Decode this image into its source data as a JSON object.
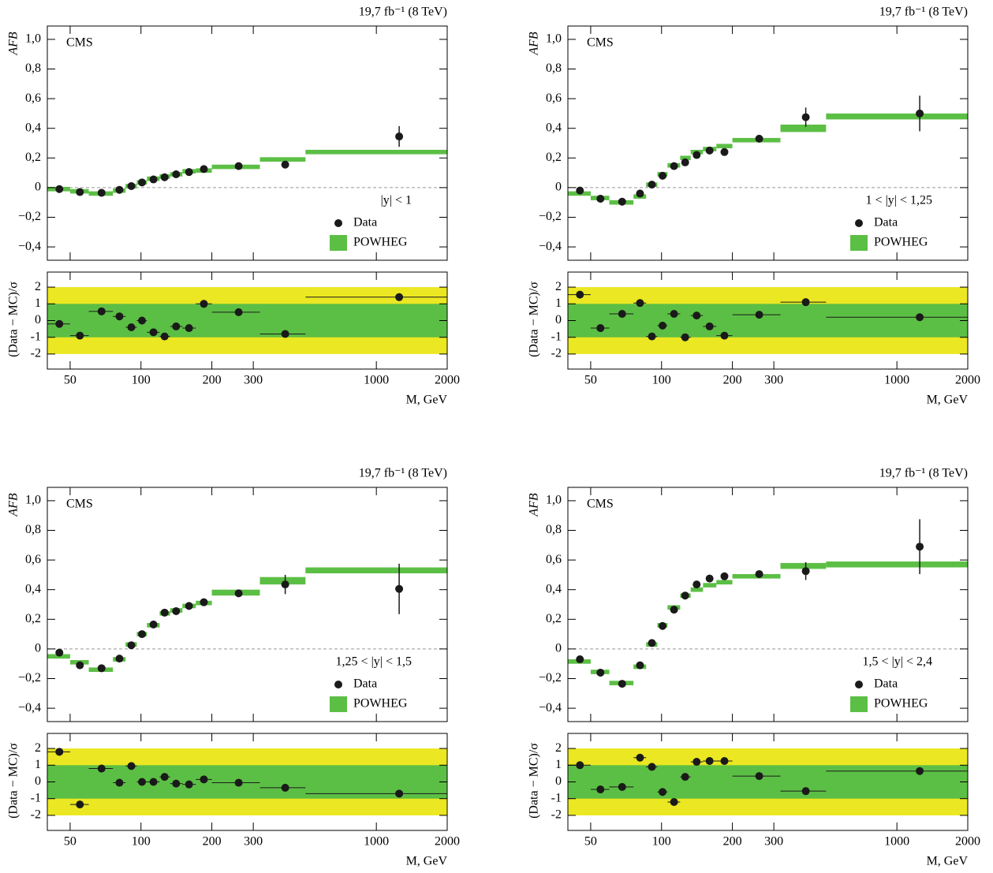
{
  "chart_data": [
    {
      "type": "errorbar",
      "title": "19,7 fb⁻¹ (8 TeV)",
      "label": "CMS",
      "annotation": "|y| < 1",
      "ylabel": "AFB",
      "xlog": true,
      "xlim": [
        40,
        2000
      ],
      "xticks": [
        50,
        100,
        200,
        300,
        1000,
        2000
      ],
      "ylim": [
        -0.49,
        1.09
      ],
      "yticks": [
        {
          "value": -0.4,
          "label": "−0,4"
        },
        {
          "value": -0.2,
          "label": "−0,2"
        },
        0,
        {
          "value": 0.2,
          "label": "0,2"
        },
        {
          "value": 0.4,
          "label": "0,4"
        },
        {
          "value": 0.6,
          "label": "0,6"
        },
        {
          "value": 0.8,
          "label": "0,8"
        },
        {
          "value": 1.0,
          "label": "1,0"
        }
      ],
      "series": [
        {
          "name": "Data",
          "color": "#1a1a1a",
          "x": [
            45,
            55,
            68,
            81,
            91,
            101,
            113,
            126,
            141,
            160,
            185,
            260,
            410,
            1250
          ],
          "values": [
            -0.01,
            -0.03,
            -0.035,
            -0.015,
            0.01,
            0.035,
            0.055,
            0.07,
            0.09,
            0.105,
            0.125,
            0.145,
            0.155,
            0.345
          ],
          "errors": [
            0.005,
            0.005,
            0.005,
            0.005,
            0.005,
            0.005,
            0.005,
            0.005,
            0.008,
            0.008,
            0.01,
            0.01,
            0.02,
            0.07
          ]
        },
        {
          "name": "POWHEG",
          "color": "#5cbf45",
          "bins": [
            40,
            50,
            60,
            76,
            86,
            96,
            106,
            120,
            133,
            150,
            171,
            200,
            320,
            500,
            2000
          ],
          "values": [
            -0.01,
            -0.025,
            -0.04,
            -0.02,
            0.01,
            0.035,
            0.06,
            0.075,
            0.09,
            0.11,
            0.115,
            0.14,
            0.19,
            0.24
          ],
          "errors": [
            0.015,
            0.015,
            0.015,
            0.015,
            0.015,
            0.015,
            0.015,
            0.015,
            0.015,
            0.015,
            0.015,
            0.015,
            0.015,
            0.015
          ]
        }
      ]
    },
    {
      "type": "scatter",
      "ylabel": "(Data − MC)/σ",
      "xlabel": "M, GeV",
      "xlog": true,
      "xlim": [
        40,
        2000
      ],
      "xticks": [
        50,
        100,
        200,
        300,
        1000,
        2000
      ],
      "ylim": [
        -2.9,
        2.9
      ],
      "yticks": [
        -2,
        -1,
        0,
        1,
        2
      ],
      "bands": [
        2,
        1
      ],
      "band_colors": [
        "#ebe722",
        "#5cbf45"
      ],
      "color": "#1a1a1a",
      "bins": [
        40,
        50,
        60,
        76,
        86,
        96,
        106,
        120,
        133,
        150,
        171,
        200,
        320,
        500,
        2000
      ],
      "x": [
        45,
        55,
        68,
        81,
        91,
        101,
        113,
        126,
        141,
        160,
        185,
        260,
        410,
        1250
      ],
      "values": [
        -0.2,
        -0.9,
        0.55,
        0.25,
        -0.4,
        0.0,
        -0.7,
        -0.95,
        -0.35,
        -0.45,
        1.0,
        0.5,
        -0.8,
        1.4
      ]
    },
    {
      "type": "errorbar",
      "title": "19,7 fb⁻¹ (8 TeV)",
      "label": "CMS",
      "annotation": "1 < |y| < 1,25",
      "ylabel": "AFB",
      "xlog": true,
      "xlim": [
        40,
        2000
      ],
      "xticks": [
        50,
        100,
        200,
        300,
        1000,
        2000
      ],
      "ylim": [
        -0.49,
        1.09
      ],
      "yticks": [
        {
          "value": -0.4,
          "label": "−0,4"
        },
        {
          "value": -0.2,
          "label": "−0,2"
        },
        0,
        {
          "value": 0.2,
          "label": "0,2"
        },
        {
          "value": 0.4,
          "label": "0,4"
        },
        {
          "value": 0.6,
          "label": "0,6"
        },
        {
          "value": 0.8,
          "label": "0,8"
        },
        {
          "value": 1.0,
          "label": "1,0"
        }
      ],
      "series": [
        {
          "name": "Data",
          "color": "#1a1a1a",
          "x": [
            45,
            55,
            68,
            81,
            91,
            101,
            113,
            126,
            141,
            160,
            185,
            260,
            410,
            1250
          ],
          "values": [
            -0.02,
            -0.075,
            -0.095,
            -0.04,
            0.02,
            0.08,
            0.145,
            0.17,
            0.22,
            0.25,
            0.24,
            0.33,
            0.475,
            0.5
          ],
          "errors": [
            0.005,
            0.005,
            0.005,
            0.005,
            0.005,
            0.01,
            0.01,
            0.015,
            0.015,
            0.02,
            0.025,
            0.02,
            0.065,
            0.12
          ]
        },
        {
          "name": "POWHEG",
          "color": "#5cbf45",
          "bins": [
            40,
            50,
            60,
            76,
            86,
            96,
            106,
            120,
            133,
            150,
            171,
            200,
            320,
            500,
            2000
          ],
          "values": [
            -0.04,
            -0.07,
            -0.1,
            -0.06,
            0.02,
            0.09,
            0.15,
            0.2,
            0.24,
            0.26,
            0.28,
            0.32,
            0.4,
            0.48
          ],
          "errors": [
            0.015,
            0.015,
            0.015,
            0.015,
            0.015,
            0.015,
            0.015,
            0.015,
            0.015,
            0.015,
            0.015,
            0.015,
            0.025,
            0.02
          ]
        }
      ]
    },
    {
      "type": "scatter",
      "ylabel": "(Data − MC)/σ",
      "xlabel": "M, GeV",
      "xlog": true,
      "xlim": [
        40,
        2000
      ],
      "xticks": [
        50,
        100,
        200,
        300,
        1000,
        2000
      ],
      "ylim": [
        -2.9,
        2.9
      ],
      "yticks": [
        -2,
        -1,
        0,
        1,
        2
      ],
      "bands": [
        2,
        1
      ],
      "band_colors": [
        "#ebe722",
        "#5cbf45"
      ],
      "color": "#1a1a1a",
      "bins": [
        40,
        50,
        60,
        76,
        86,
        96,
        106,
        120,
        133,
        150,
        171,
        200,
        320,
        500,
        2000
      ],
      "x": [
        45,
        55,
        68,
        81,
        91,
        101,
        113,
        126,
        141,
        160,
        185,
        260,
        410,
        1250
      ],
      "values": [
        1.55,
        -0.45,
        0.4,
        1.05,
        -0.95,
        -0.3,
        0.4,
        -1.0,
        0.3,
        -0.35,
        -0.9,
        0.35,
        1.1,
        0.2
      ]
    },
    {
      "type": "errorbar",
      "title": "19,7 fb⁻¹ (8 TeV)",
      "label": "CMS",
      "annotation": "1,25 < |y| < 1,5",
      "ylabel": "AFB",
      "xlog": true,
      "xlim": [
        40,
        2000
      ],
      "xticks": [
        50,
        100,
        200,
        300,
        1000,
        2000
      ],
      "ylim": [
        -0.49,
        1.09
      ],
      "yticks": [
        {
          "value": -0.4,
          "label": "−0,4"
        },
        {
          "value": -0.2,
          "label": "−0,2"
        },
        0,
        {
          "value": 0.2,
          "label": "0,2"
        },
        {
          "value": 0.4,
          "label": "0,4"
        },
        {
          "value": 0.6,
          "label": "0,6"
        },
        {
          "value": 0.8,
          "label": "0,8"
        },
        {
          "value": 1.0,
          "label": "1,0"
        }
      ],
      "series": [
        {
          "name": "Data",
          "color": "#1a1a1a",
          "x": [
            45,
            55,
            68,
            81,
            91,
            101,
            113,
            126,
            141,
            160,
            185,
            260,
            410,
            1250
          ],
          "values": [
            -0.025,
            -0.11,
            -0.13,
            -0.065,
            0.025,
            0.1,
            0.165,
            0.245,
            0.255,
            0.29,
            0.315,
            0.375,
            0.435,
            0.405
          ],
          "errors": [
            0.005,
            0.005,
            0.005,
            0.005,
            0.01,
            0.01,
            0.01,
            0.015,
            0.02,
            0.02,
            0.025,
            0.025,
            0.065,
            0.17
          ]
        },
        {
          "name": "POWHEG",
          "color": "#5cbf45",
          "bins": [
            40,
            50,
            60,
            76,
            86,
            96,
            106,
            120,
            133,
            150,
            171,
            200,
            320,
            500,
            2000
          ],
          "values": [
            -0.05,
            -0.09,
            -0.14,
            -0.07,
            0.03,
            0.1,
            0.16,
            0.24,
            0.26,
            0.29,
            0.31,
            0.38,
            0.46,
            0.53
          ],
          "errors": [
            0.015,
            0.015,
            0.015,
            0.015,
            0.015,
            0.015,
            0.015,
            0.015,
            0.015,
            0.015,
            0.015,
            0.02,
            0.025,
            0.02
          ]
        }
      ]
    },
    {
      "type": "scatter",
      "ylabel": "(Data − MC)/σ",
      "xlabel": "M, GeV",
      "xlog": true,
      "xlim": [
        40,
        2000
      ],
      "xticks": [
        50,
        100,
        200,
        300,
        1000,
        2000
      ],
      "ylim": [
        -2.9,
        2.9
      ],
      "yticks": [
        -2,
        -1,
        0,
        1,
        2
      ],
      "bands": [
        2,
        1
      ],
      "band_colors": [
        "#ebe722",
        "#5cbf45"
      ],
      "color": "#1a1a1a",
      "bins": [
        40,
        50,
        60,
        76,
        86,
        96,
        106,
        120,
        133,
        150,
        171,
        200,
        320,
        500,
        2000
      ],
      "x": [
        45,
        55,
        68,
        81,
        91,
        101,
        113,
        126,
        141,
        160,
        185,
        260,
        410,
        1250
      ],
      "values": [
        1.8,
        -1.35,
        0.8,
        -0.05,
        0.95,
        0.0,
        0.0,
        0.3,
        -0.1,
        -0.15,
        0.15,
        -0.05,
        -0.35,
        -0.7
      ]
    },
    {
      "type": "errorbar",
      "title": "19,7 fb⁻¹ (8 TeV)",
      "label": "CMS",
      "annotation": "1,5 < |y| < 2,4",
      "ylabel": "AFB",
      "xlog": true,
      "xlim": [
        40,
        2000
      ],
      "xticks": [
        50,
        100,
        200,
        300,
        1000,
        2000
      ],
      "ylim": [
        -0.49,
        1.09
      ],
      "yticks": [
        {
          "value": -0.4,
          "label": "−0,4"
        },
        {
          "value": -0.2,
          "label": "−0,2"
        },
        0,
        {
          "value": 0.2,
          "label": "0,2"
        },
        {
          "value": 0.4,
          "label": "0,4"
        },
        {
          "value": 0.6,
          "label": "0,6"
        },
        {
          "value": 0.8,
          "label": "0,8"
        },
        {
          "value": 1.0,
          "label": "1,0"
        }
      ],
      "series": [
        {
          "name": "Data",
          "color": "#1a1a1a",
          "x": [
            45,
            55,
            68,
            81,
            91,
            101,
            113,
            126,
            141,
            160,
            185,
            260,
            410,
            1250
          ],
          "values": [
            -0.07,
            -0.16,
            -0.235,
            -0.11,
            0.04,
            0.155,
            0.265,
            0.36,
            0.435,
            0.475,
            0.49,
            0.505,
            0.525,
            0.69
          ],
          "errors": [
            0.005,
            0.005,
            0.005,
            0.005,
            0.005,
            0.01,
            0.01,
            0.01,
            0.01,
            0.015,
            0.02,
            0.02,
            0.06,
            0.185
          ]
        },
        {
          "name": "POWHEG",
          "color": "#5cbf45",
          "bins": [
            40,
            50,
            60,
            76,
            86,
            96,
            106,
            120,
            133,
            150,
            171,
            200,
            320,
            500,
            2000
          ],
          "values": [
            -0.085,
            -0.155,
            -0.23,
            -0.12,
            0.03,
            0.16,
            0.28,
            0.36,
            0.4,
            0.43,
            0.45,
            0.49,
            0.56,
            0.57
          ],
          "errors": [
            0.015,
            0.015,
            0.015,
            0.015,
            0.015,
            0.015,
            0.015,
            0.015,
            0.015,
            0.015,
            0.015,
            0.015,
            0.02,
            0.02
          ]
        }
      ]
    },
    {
      "type": "scatter",
      "ylabel": "(Data − MC)/σ",
      "xlabel": "M, GeV",
      "xlog": true,
      "xlim": [
        40,
        2000
      ],
      "xticks": [
        50,
        100,
        200,
        300,
        1000,
        2000
      ],
      "ylim": [
        -2.9,
        2.9
      ],
      "yticks": [
        -2,
        -1,
        0,
        1,
        2
      ],
      "bands": [
        2,
        1
      ],
      "band_colors": [
        "#ebe722",
        "#5cbf45"
      ],
      "color": "#1a1a1a",
      "bins": [
        40,
        50,
        60,
        76,
        86,
        96,
        106,
        120,
        133,
        150,
        171,
        200,
        320,
        500,
        2000
      ],
      "x": [
        45,
        55,
        68,
        81,
        91,
        101,
        113,
        126,
        141,
        160,
        185,
        260,
        410,
        1250
      ],
      "values": [
        1.0,
        -0.45,
        -0.3,
        1.45,
        0.9,
        -0.6,
        -1.2,
        0.3,
        1.2,
        1.25,
        1.25,
        0.35,
        -0.55,
        0.65
      ]
    }
  ]
}
